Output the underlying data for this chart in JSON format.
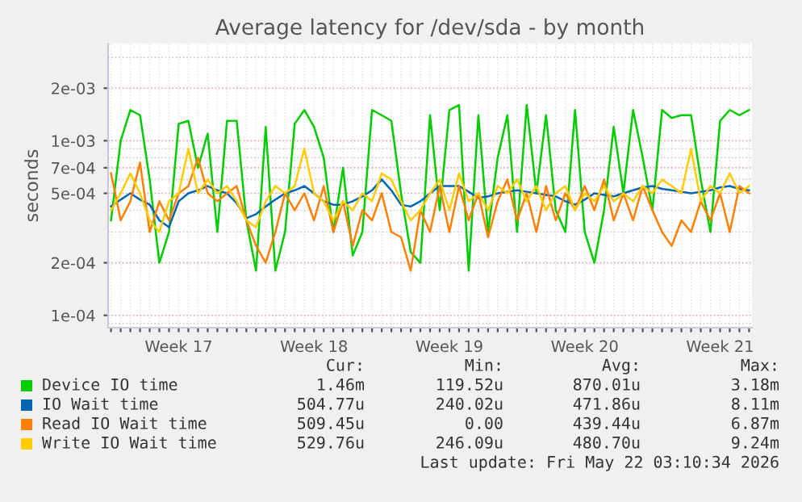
{
  "chart_data": {
    "type": "line",
    "title": "Average latency for /dev/sda - by month",
    "ylabel": "seconds",
    "log": "y",
    "grid": true,
    "legend": "bottom",
    "line_style": "solid",
    "marker": "none",
    "ylim": [
      8.5e-05,
      0.0036
    ],
    "categories": [
      null,
      null,
      null,
      null,
      null,
      null,
      null,
      "Week 17",
      null,
      null,
      null,
      null,
      null,
      null,
      null,
      null,
      null,
      null,
      null,
      null,
      null,
      "Week 18",
      null,
      null,
      null,
      null,
      null,
      null,
      null,
      null,
      null,
      null,
      null,
      null,
      null,
      "Week 19",
      null,
      null,
      null,
      null,
      null,
      null,
      null,
      null,
      null,
      null,
      null,
      null,
      null,
      "Week 20",
      null,
      null,
      null,
      null,
      null,
      null,
      null,
      null,
      null,
      null,
      null,
      null,
      null,
      "Week 21",
      null,
      null,
      null
    ],
    "yticks": [
      {
        "value": 0.0001,
        "label": "1e-04"
      },
      {
        "value": 0.0002,
        "label": "2e-04"
      },
      {
        "value": 0.0005,
        "label": "5e-04"
      },
      {
        "value": 0.0007,
        "label": "7e-04"
      },
      {
        "value": 0.001,
        "label": "1e-03"
      },
      {
        "value": 0.002,
        "label": "2e-03"
      },
      {
        "value": 9e-05,
        "label": null
      },
      {
        "value": 0.0003,
        "label": null
      },
      {
        "value": 0.0004,
        "label": null
      },
      {
        "value": 0.0006,
        "label": null
      },
      {
        "value": 0.0008,
        "label": null
      },
      {
        "value": 0.0009,
        "label": null
      },
      {
        "value": 0.003,
        "label": null
      }
    ],
    "series": [
      {
        "name": "Device IO time",
        "color": "#00cc00",
        "values": [
          0.00035,
          0.001,
          0.0015,
          0.0014,
          0.0006,
          0.0002,
          0.0003,
          0.00125,
          0.0013,
          0.0007,
          0.0011,
          0.0003,
          0.0013,
          0.0013,
          0.00035,
          0.00018,
          0.0012,
          0.00018,
          0.0003,
          0.00125,
          0.0015,
          0.0012,
          0.0008,
          0.0003,
          0.0007,
          0.00022,
          0.0003,
          0.0015,
          0.0014,
          0.0013,
          0.0005,
          0.00023,
          0.0002,
          0.0014,
          0.0004,
          0.0015,
          0.0016,
          0.00018,
          0.0014,
          0.0003,
          0.0008,
          0.0014,
          0.0003,
          0.0016,
          0.0005,
          0.0014,
          0.0004,
          0.0003,
          0.0015,
          0.0003,
          0.0002,
          0.0004,
          0.0012,
          0.0005,
          0.0015,
          0.0008,
          0.0004,
          0.0015,
          0.00135,
          0.0014,
          0.0014,
          0.0006,
          0.0003,
          0.0013,
          0.0015,
          0.0014,
          0.0015
        ]
      },
      {
        "name": "IO Wait time",
        "color": "#0066b3",
        "values": [
          0.00042,
          0.00046,
          0.0005,
          0.00046,
          0.00043,
          0.00035,
          0.00032,
          0.00045,
          0.0005,
          0.00052,
          0.00055,
          0.00052,
          0.0005,
          0.00044,
          0.00036,
          0.00038,
          0.00042,
          0.00046,
          0.0005,
          0.00052,
          0.00055,
          0.0005,
          0.00045,
          0.00043,
          0.00043,
          0.00045,
          0.00048,
          0.00052,
          0.0006,
          0.00052,
          0.00043,
          0.00042,
          0.00045,
          0.0005,
          0.00055,
          0.00055,
          0.00055,
          0.00051,
          0.00047,
          0.00048,
          0.0005,
          0.00051,
          0.00052,
          0.00051,
          0.0005,
          0.00049,
          0.00048,
          0.00045,
          0.00043,
          0.00046,
          0.0005,
          0.00049,
          0.00048,
          0.0005,
          0.00052,
          0.00054,
          0.00055,
          0.00053,
          0.00052,
          0.00051,
          0.0005,
          0.00051,
          0.00052,
          0.00054,
          0.00055,
          0.00053,
          0.00052
        ]
      },
      {
        "name": "Read IO Wait time",
        "color": "#ff8000",
        "values": [
          0.00065,
          0.00035,
          0.00045,
          0.00075,
          0.0003,
          0.00045,
          0.00035,
          0.0005,
          0.00055,
          0.0008,
          0.0005,
          0.00045,
          0.0005,
          0.00055,
          0.00035,
          0.00025,
          0.0002,
          0.0003,
          0.0005,
          0.0004,
          0.0005,
          0.00035,
          0.00055,
          0.0003,
          0.00045,
          0.00025,
          0.0004,
          0.00035,
          0.0005,
          0.0003,
          0.00028,
          0.00018,
          0.0004,
          0.0003,
          0.00055,
          0.0003,
          0.00055,
          0.00035,
          0.0005,
          0.00028,
          0.00045,
          0.0006,
          0.00035,
          0.0005,
          0.0003,
          0.00055,
          0.00035,
          0.0005,
          0.0004,
          0.00055,
          0.0004,
          0.0006,
          0.00035,
          0.0005,
          0.00035,
          0.00055,
          0.0004,
          0.0003,
          0.00025,
          0.00035,
          0.0003,
          0.00045,
          0.00035,
          0.0005,
          0.0003,
          0.00055,
          0.0005
        ]
      },
      {
        "name": "Write IO Wait time",
        "color": "#ffcc00",
        "values": [
          0.0004,
          0.0005,
          0.00065,
          0.0005,
          0.00035,
          0.0003,
          0.00045,
          0.0005,
          0.0009,
          0.0005,
          0.0006,
          0.0005,
          0.00055,
          0.00045,
          0.00035,
          0.00032,
          0.00045,
          0.00055,
          0.0005,
          0.00055,
          0.0009,
          0.0005,
          0.00045,
          0.00035,
          0.00045,
          0.0004,
          0.0005,
          0.00045,
          0.00065,
          0.0006,
          0.00045,
          0.00035,
          0.0004,
          0.0005,
          0.0006,
          0.0004,
          0.00065,
          0.00045,
          0.0005,
          0.0004,
          0.00055,
          0.0005,
          0.0006,
          0.00045,
          0.00055,
          0.0004,
          0.0005,
          0.00055,
          0.0004,
          0.0005,
          0.00045,
          0.00055,
          0.00045,
          0.0005,
          0.00045,
          0.00055,
          0.0005,
          0.0006,
          0.00055,
          0.0005,
          0.0009,
          0.00045,
          0.00055,
          0.0005,
          0.00065,
          0.0005,
          0.00055
        ]
      }
    ],
    "annotations": [
      "Cur:",
      "Min:",
      "Avg:",
      "Max:",
      "1.46m",
      "119.52u",
      "870.01u",
      "3.18m",
      "504.77u",
      "240.02u",
      "471.86u",
      "8.11m",
      "509.45u",
      "0.00",
      "439.44u",
      "6.87m",
      "529.76u",
      "246.09u",
      "480.70u",
      "9.24m",
      "Last update: Fri May 22 03:10:34 2026"
    ]
  }
}
